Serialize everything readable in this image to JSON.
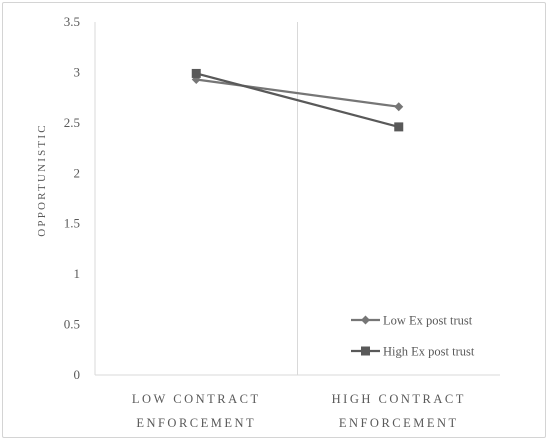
{
  "chart_data": {
    "type": "line",
    "title": "",
    "xlabel": "",
    "ylabel": "OPPORTUNISTIC",
    "categories": [
      [
        "LOW CONTRACT",
        "ENFORCEMENT"
      ],
      [
        "HIGH CONTRACT",
        "ENFORCEMENT"
      ]
    ],
    "ylim": [
      0,
      3.5
    ],
    "yticks": [
      "0",
      "0.5",
      "1",
      "1.5",
      "2",
      "2.5",
      "3",
      "3.5"
    ],
    "yticks_values": [
      0,
      0.5,
      1,
      1.5,
      2,
      2.5,
      3,
      3.5
    ],
    "grid": false,
    "legend_position": "bottom-right",
    "series": [
      {
        "name": "Low Ex post trust",
        "marker": "diamond",
        "color": "#767676",
        "values": [
          2.93,
          2.66
        ]
      },
      {
        "name": "High Ex post trust",
        "marker": "square",
        "color": "#595959",
        "values": [
          2.99,
          2.46
        ]
      }
    ]
  }
}
